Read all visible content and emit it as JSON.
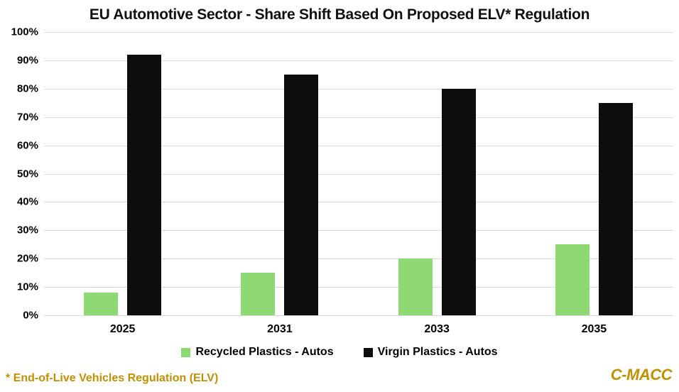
{
  "chart_data": {
    "type": "bar",
    "title": "EU Automotive Sector - Share Shift Based On Proposed ELV* Regulation",
    "categories": [
      "2025",
      "2031",
      "2033",
      "2035"
    ],
    "series": [
      {
        "name": "Recycled Plastics - Autos",
        "color": "#8ED973",
        "values": [
          8,
          15,
          20,
          25
        ]
      },
      {
        "name": "Virgin Plastics - Autos",
        "color": "#0D0D0D",
        "values": [
          92,
          85,
          80,
          75
        ]
      }
    ],
    "xlabel": "",
    "ylabel": "",
    "ylim": [
      0,
      100
    ],
    "ytick_step": 10,
    "ytick_suffix": "%",
    "grid": true,
    "legend_position": "bottom"
  },
  "footer": {
    "note": "* End-of-Live Vehicles Regulation (ELV)",
    "brand": "C-MACC"
  },
  "colors": {
    "gridline": "#D9D9D9",
    "accent_gold": "#BF9000",
    "recycled_green": "#8ED973",
    "virgin_black": "#0D0D0D"
  }
}
